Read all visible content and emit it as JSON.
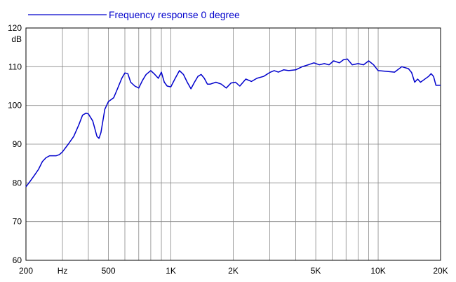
{
  "chart_data": {
    "type": "line",
    "title": "",
    "xlabel": "Hz",
    "ylabel": "dB",
    "x_scale": "log",
    "xlim": [
      200,
      20000
    ],
    "ylim": [
      60,
      120
    ],
    "grid": true,
    "legend_position": "top-left",
    "x_ticks": [
      "200",
      "Hz",
      "500",
      "1K",
      "2K",
      "5K",
      "10K",
      "20K"
    ],
    "y_ticks": [
      "120",
      "110",
      "100",
      "90",
      "80",
      "70",
      "60"
    ],
    "series": [
      {
        "name": "Frequency response 0 degree",
        "color": "#0000cc",
        "points": [
          [
            200,
            79
          ],
          [
            210,
            80.5
          ],
          [
            220,
            82
          ],
          [
            230,
            83.5
          ],
          [
            240,
            85.5
          ],
          [
            250,
            86.5
          ],
          [
            260,
            87
          ],
          [
            270,
            87
          ],
          [
            280,
            87
          ],
          [
            290,
            87.3
          ],
          [
            300,
            88
          ],
          [
            320,
            90
          ],
          [
            340,
            92
          ],
          [
            360,
            95
          ],
          [
            375,
            97.5
          ],
          [
            390,
            98
          ],
          [
            400,
            97.8
          ],
          [
            420,
            96
          ],
          [
            440,
            92
          ],
          [
            450,
            91.5
          ],
          [
            460,
            93
          ],
          [
            480,
            99
          ],
          [
            500,
            101
          ],
          [
            530,
            102
          ],
          [
            550,
            104
          ],
          [
            580,
            107
          ],
          [
            600,
            108.4
          ],
          [
            620,
            108.2
          ],
          [
            640,
            106
          ],
          [
            670,
            105
          ],
          [
            700,
            104.5
          ],
          [
            730,
            106.5
          ],
          [
            760,
            108
          ],
          [
            800,
            109
          ],
          [
            830,
            108.2
          ],
          [
            870,
            107
          ],
          [
            900,
            108.6
          ],
          [
            930,
            106
          ],
          [
            960,
            105
          ],
          [
            1000,
            104.8
          ],
          [
            1050,
            107
          ],
          [
            1100,
            109
          ],
          [
            1150,
            108
          ],
          [
            1200,
            106
          ],
          [
            1250,
            104.3
          ],
          [
            1300,
            106
          ],
          [
            1350,
            107.5
          ],
          [
            1400,
            108
          ],
          [
            1450,
            107
          ],
          [
            1500,
            105.5
          ],
          [
            1550,
            105.5
          ],
          [
            1650,
            106
          ],
          [
            1750,
            105.5
          ],
          [
            1850,
            104.5
          ],
          [
            1950,
            105.8
          ],
          [
            2050,
            106
          ],
          [
            2150,
            105
          ],
          [
            2300,
            106.8
          ],
          [
            2450,
            106.2
          ],
          [
            2600,
            107
          ],
          [
            2800,
            107.5
          ],
          [
            3000,
            108.5
          ],
          [
            3150,
            109
          ],
          [
            3300,
            108.6
          ],
          [
            3500,
            109.2
          ],
          [
            3700,
            109
          ],
          [
            4000,
            109.2
          ],
          [
            4300,
            110
          ],
          [
            4600,
            110.5
          ],
          [
            4900,
            111
          ],
          [
            5200,
            110.5
          ],
          [
            5500,
            110.8
          ],
          [
            5800,
            110.5
          ],
          [
            6100,
            111.5
          ],
          [
            6500,
            111
          ],
          [
            6800,
            111.8
          ],
          [
            7100,
            112
          ],
          [
            7500,
            110.5
          ],
          [
            8000,
            110.8
          ],
          [
            8500,
            110.5
          ],
          [
            9000,
            111.5
          ],
          [
            9500,
            110.5
          ],
          [
            10000,
            109
          ],
          [
            11000,
            108.8
          ],
          [
            12000,
            108.6
          ],
          [
            13000,
            110
          ],
          [
            14000,
            109.5
          ],
          [
            14500,
            108.5
          ],
          [
            15000,
            106
          ],
          [
            15500,
            106.8
          ],
          [
            16000,
            106
          ],
          [
            16500,
            106.5
          ],
          [
            17500,
            107.5
          ],
          [
            18000,
            108.2
          ],
          [
            18500,
            107.5
          ],
          [
            19000,
            105.2
          ],
          [
            20000,
            105.2
          ]
        ]
      }
    ]
  }
}
